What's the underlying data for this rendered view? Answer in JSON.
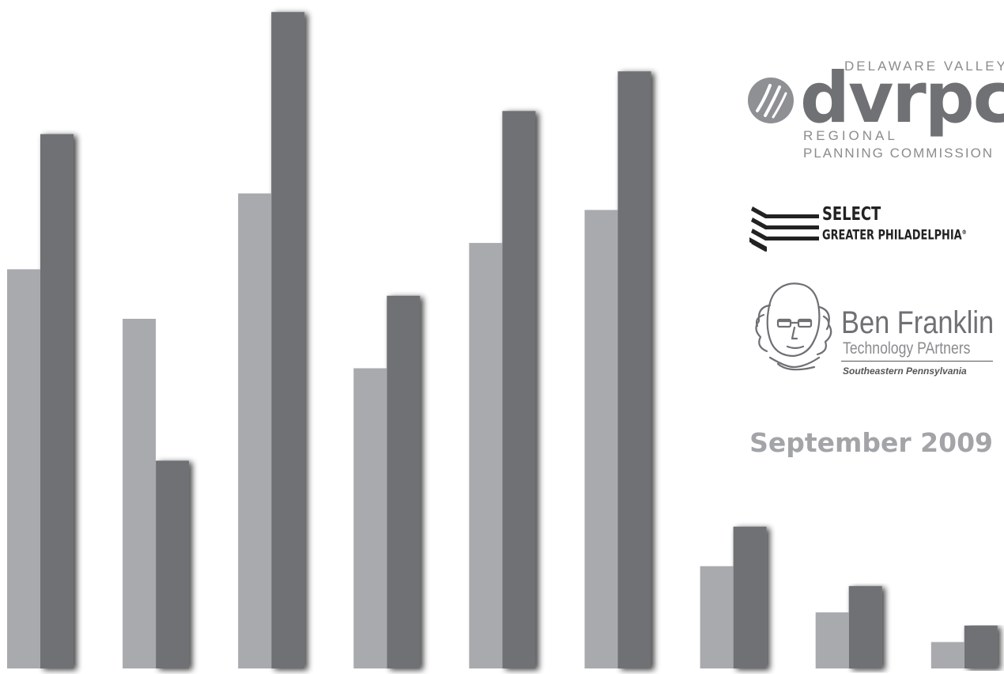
{
  "chart_data": {
    "type": "bar",
    "title": "",
    "xlabel": "",
    "ylabel": "",
    "grid": false,
    "legend": "none",
    "ylim": [
      0,
      100
    ],
    "categories": [
      "",
      "",
      "",
      "",
      "",
      "",
      "",
      "",
      ""
    ],
    "series": [
      {
        "values": [
          60.5,
          53,
          72,
          45.5,
          64.5,
          69.5,
          15.5,
          8.5,
          4
        ]
      },
      {
        "values": [
          81,
          31.5,
          99.5,
          56.5,
          84.5,
          90.5,
          21.5,
          12.5,
          6.5
        ]
      }
    ],
    "colors": {
      "series_light": "#a9aaae",
      "series_dark": "#707175",
      "shadow": "#000000"
    }
  },
  "logos": {
    "dvrpc": {
      "line1": "DELAWARE VALLEY",
      "wordmark": "dvrpc",
      "line2": "REGIONAL",
      "line3": "PLANNING COMMISSION",
      "mark_icon": "dvrpc-circle-mark-icon"
    },
    "select_greater_philadelphia": {
      "line1": "SELECT",
      "line2": "GREATER PHILADELPHIA",
      "registered": "®",
      "mark_icon": "chevron-stripes-icon"
    },
    "ben_franklin": {
      "name": "Ben Franklin",
      "tagline": "Technology PArtners",
      "region": "Southeastern Pennsylvania",
      "mark_icon": "ben-franklin-portrait-icon"
    }
  },
  "date": "September 2009"
}
